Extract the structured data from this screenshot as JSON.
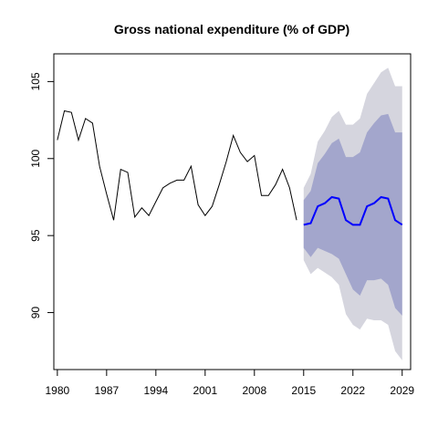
{
  "chart_data": {
    "type": "line",
    "title": "Gross national expenditure (% of GDP)",
    "xlabel": "",
    "ylabel": "",
    "xlim": [
      1979.5,
      2030.2
    ],
    "ylim": [
      86.3,
      106.8
    ],
    "x_ticks": [
      1980,
      1987,
      1994,
      2001,
      2008,
      2015,
      2022,
      2029
    ],
    "y_ticks": [
      90,
      95,
      100,
      105
    ],
    "grid": false,
    "legend": "none",
    "colors": {
      "history": "#000000",
      "forecast": "#0000ff",
      "band_80": "#a3a6cc",
      "band_95": "#d5d5de"
    },
    "history": {
      "x": [
        1980,
        1981,
        1982,
        1983,
        1984,
        1985,
        1986,
        1987,
        1988,
        1989,
        1990,
        1991,
        1992,
        1993,
        1994,
        1995,
        1996,
        1997,
        1998,
        1999,
        2000,
        2001,
        2002,
        2003,
        2004,
        2005,
        2006,
        2007,
        2008,
        2009,
        2010,
        2011,
        2012,
        2013,
        2014
      ],
      "y": [
        101.2,
        103.1,
        103.0,
        101.2,
        102.6,
        102.3,
        99.5,
        97.7,
        96.0,
        99.3,
        99.1,
        96.2,
        96.8,
        96.3,
        97.2,
        98.1,
        98.4,
        98.6,
        98.6,
        99.5,
        97.0,
        96.3,
        96.9,
        98.3,
        99.8,
        101.5,
        100.4,
        99.8,
        100.2,
        97.6,
        97.6,
        98.3,
        99.3,
        98.1,
        96.0
      ]
    },
    "forecast": {
      "x": [
        2015,
        2016,
        2017,
        2018,
        2019,
        2020,
        2021,
        2022,
        2023,
        2024,
        2025,
        2026,
        2027,
        2028,
        2029
      ],
      "mean": [
        95.7,
        95.8,
        96.9,
        97.1,
        97.5,
        97.4,
        96.0,
        95.7,
        95.7,
        96.9,
        97.1,
        97.5,
        97.4,
        96.0,
        95.7
      ],
      "lo80": [
        94.2,
        93.6,
        94.2,
        94.0,
        93.8,
        93.5,
        92.5,
        91.5,
        91.1,
        92.1,
        92.1,
        92.2,
        91.8,
        90.3,
        89.8
      ],
      "hi80": [
        97.3,
        97.9,
        99.7,
        100.3,
        101.0,
        101.3,
        100.1,
        100.1,
        100.4,
        101.7,
        102.3,
        102.8,
        102.9,
        101.7,
        101.7
      ],
      "lo95": [
        93.4,
        92.5,
        92.9,
        92.6,
        92.3,
        91.8,
        89.9,
        89.2,
        88.9,
        89.6,
        89.5,
        89.5,
        89.2,
        87.5,
        86.9
      ],
      "hi95": [
        98.1,
        99.0,
        101.1,
        101.8,
        102.7,
        103.1,
        102.2,
        102.2,
        102.6,
        104.2,
        104.9,
        105.6,
        105.9,
        104.7,
        104.7
      ]
    }
  }
}
